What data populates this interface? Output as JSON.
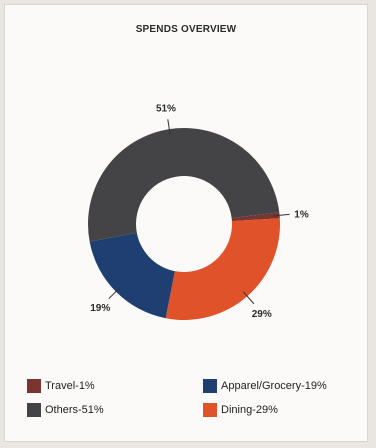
{
  "chart_data": {
    "type": "pie",
    "donut": true,
    "title": "SPENDS OVERVIEW",
    "slices": [
      {
        "name": "Travel",
        "value": 1,
        "label": "1%",
        "legend": "Travel-1%",
        "color": "#7a3530"
      },
      {
        "name": "Dining",
        "value": 29,
        "label": "29%",
        "legend": "Dining-29%",
        "color": "#e0532a"
      },
      {
        "name": "Apparel/Grocery",
        "value": 19,
        "label": "19%",
        "legend": "Apparel/Grocery-19%",
        "color": "#1f3f72"
      },
      {
        "name": "Others",
        "value": 51,
        "label": "51%",
        "legend": "Others-51%",
        "color": "#444446"
      }
    ],
    "legend_placement": "bottom"
  }
}
